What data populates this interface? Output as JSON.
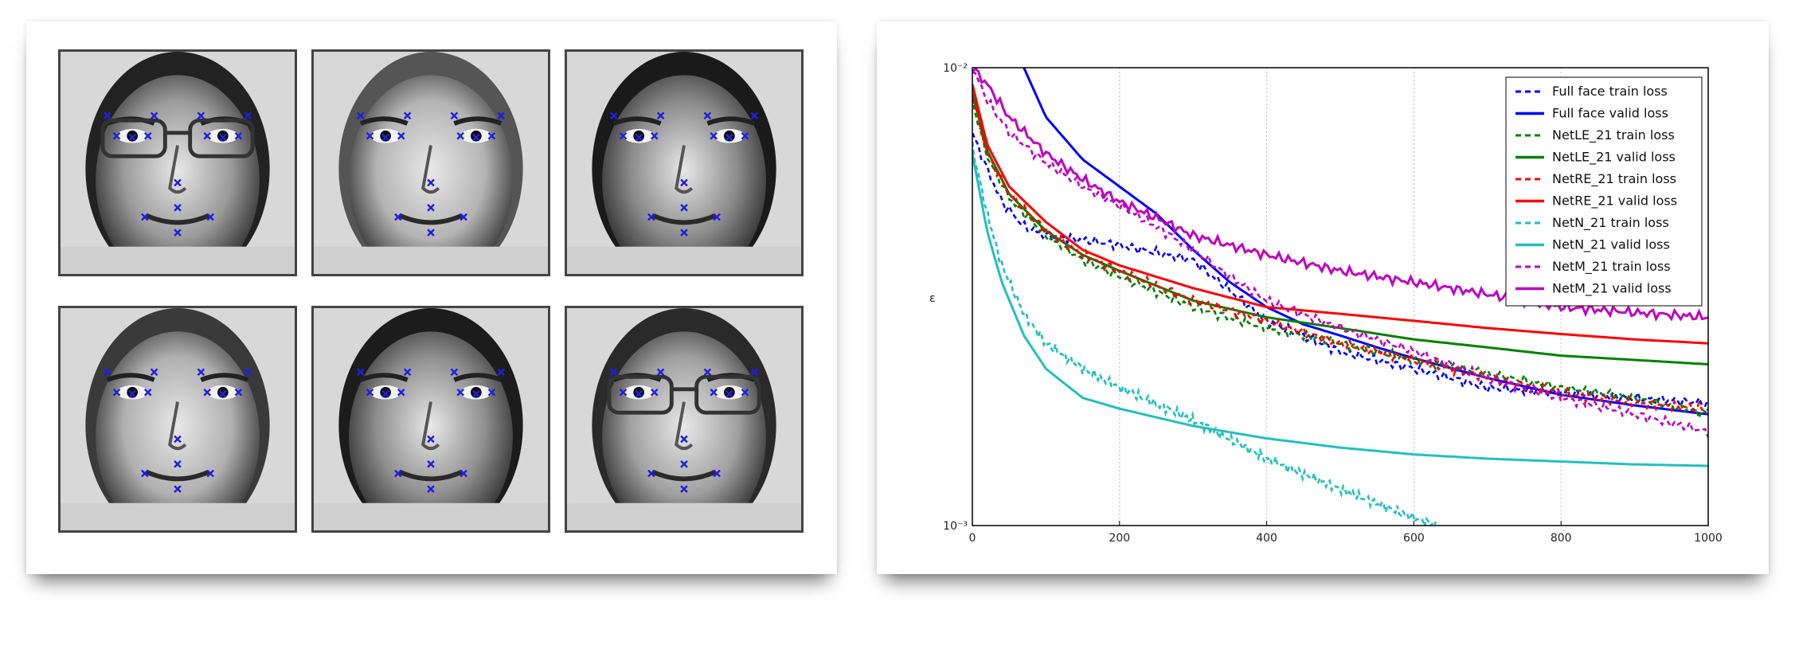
{
  "faces": [
    {
      "row": 0,
      "col": 0,
      "tone": "#9a9a9a",
      "glasses": true,
      "hair": "#222"
    },
    {
      "row": 0,
      "col": 1,
      "tone": "#b4b4b4",
      "glasses": false,
      "hair": "#555"
    },
    {
      "row": 0,
      "col": 2,
      "tone": "#8a8a8a",
      "glasses": false,
      "hair": "#1a1a1a"
    },
    {
      "row": 1,
      "col": 0,
      "tone": "#b0b0b0",
      "glasses": false,
      "hair": "#3a3a3a"
    },
    {
      "row": 1,
      "col": 1,
      "tone": "#8f8f8f",
      "glasses": false,
      "hair": "#1c1c1c"
    },
    {
      "row": 1,
      "col": 2,
      "tone": "#a0a0a0",
      "glasses": true,
      "hair": "#2a2a2a"
    }
  ],
  "marker_color": "#1f1fe0",
  "chart_data": {
    "type": "line",
    "title": "",
    "xlabel": "",
    "ylabel": "ε",
    "xlim": [
      0,
      1000
    ],
    "ylim": [
      0.001,
      0.01
    ],
    "yscale": "log",
    "grid": true,
    "legend_position": "top-right",
    "x_ticks": [
      "0",
      "200",
      "400",
      "600",
      "800",
      "1000"
    ],
    "y_ticks": [
      "10⁻²",
      "10⁻³"
    ],
    "series": [
      {
        "name": "Full face train loss",
        "color": "#0000ff",
        "dash": true,
        "x": [
          0,
          20,
          40,
          70,
          100,
          150,
          200,
          300,
          400,
          500,
          600,
          700,
          800,
          900,
          1000
        ],
        "y": [
          0.0072,
          0.006,
          0.0051,
          0.0045,
          0.0043,
          0.0042,
          0.0041,
          0.0038,
          0.0028,
          0.0024,
          0.0022,
          0.002,
          0.00195,
          0.0019,
          0.00185
        ]
      },
      {
        "name": "Full face valid loss",
        "color": "#0000ff",
        "dash": false,
        "x": [
          70,
          100,
          150,
          200,
          250,
          300,
          350,
          400,
          450,
          500,
          550,
          600,
          700,
          800,
          900,
          1000
        ],
        "y": [
          0.01,
          0.0078,
          0.0063,
          0.0055,
          0.0048,
          0.004,
          0.0034,
          0.003,
          0.00275,
          0.0026,
          0.00245,
          0.00232,
          0.0021,
          0.00193,
          0.00183,
          0.00175
        ]
      },
      {
        "name": "NetLE_21 train loss",
        "color": "#008000",
        "dash": true,
        "x": [
          0,
          20,
          50,
          100,
          150,
          200,
          300,
          400,
          500,
          600,
          700,
          800,
          900,
          1000
        ],
        "y": [
          0.0085,
          0.0064,
          0.0052,
          0.0043,
          0.0038,
          0.0035,
          0.003,
          0.0027,
          0.0025,
          0.0023,
          0.00215,
          0.002,
          0.0019,
          0.00175
        ]
      },
      {
        "name": "NetLE_21 valid loss",
        "color": "#008000",
        "dash": false,
        "x": [
          0,
          20,
          50,
          100,
          150,
          200,
          300,
          400,
          500,
          600,
          700,
          800,
          900,
          1000
        ],
        "y": [
          0.0088,
          0.0066,
          0.0053,
          0.0044,
          0.0039,
          0.0036,
          0.0031,
          0.00285,
          0.0027,
          0.00255,
          0.00245,
          0.00235,
          0.0023,
          0.00225
        ]
      },
      {
        "name": "NetRE_21 train loss",
        "color": "#ff0000",
        "dash": true,
        "x": [
          0,
          20,
          50,
          100,
          150,
          200,
          300,
          400,
          500,
          600,
          700,
          800,
          900,
          1000
        ],
        "y": [
          0.0087,
          0.0065,
          0.0053,
          0.0044,
          0.0039,
          0.0036,
          0.0031,
          0.0028,
          0.0025,
          0.0023,
          0.0021,
          0.00195,
          0.00185,
          0.0018
        ]
      },
      {
        "name": "NetRE_21 valid loss",
        "color": "#ff0000",
        "dash": false,
        "x": [
          0,
          20,
          50,
          100,
          150,
          200,
          300,
          400,
          500,
          600,
          700,
          800,
          900,
          1000
        ],
        "y": [
          0.0092,
          0.0068,
          0.0055,
          0.0046,
          0.004,
          0.0037,
          0.0033,
          0.003,
          0.0029,
          0.0028,
          0.0027,
          0.00262,
          0.00255,
          0.0025
        ]
      },
      {
        "name": "NetN_21 train loss",
        "color": "#22bfbf",
        "dash": true,
        "x": [
          0,
          20,
          40,
          70,
          100,
          150,
          200,
          300,
          400,
          500,
          600,
          630
        ],
        "y": [
          0.0067,
          0.0048,
          0.0037,
          0.0029,
          0.0025,
          0.0022,
          0.002,
          0.0017,
          0.0014,
          0.0012,
          0.00104,
          0.001
        ]
      },
      {
        "name": "NetN_21 valid loss",
        "color": "#22bfbf",
        "dash": false,
        "x": [
          0,
          20,
          40,
          70,
          100,
          150,
          200,
          300,
          400,
          500,
          600,
          700,
          800,
          900,
          1000
        ],
        "y": [
          0.0065,
          0.0044,
          0.0034,
          0.0026,
          0.0022,
          0.0019,
          0.0018,
          0.00165,
          0.00155,
          0.00148,
          0.00143,
          0.0014,
          0.00138,
          0.00136,
          0.00135
        ]
      },
      {
        "name": "NetM_21 train loss",
        "color": "#bf00bf",
        "dash": true,
        "x": [
          0,
          20,
          50,
          100,
          150,
          200,
          250,
          300,
          350,
          400,
          500,
          600,
          700,
          800,
          900,
          1000
        ],
        "y": [
          0.01,
          0.0085,
          0.0072,
          0.0062,
          0.0055,
          0.005,
          0.0045,
          0.004,
          0.0035,
          0.0031,
          0.0027,
          0.0024,
          0.0021,
          0.0019,
          0.00175,
          0.0016
        ]
      },
      {
        "name": "NetM_21 valid loss",
        "color": "#bf00bf",
        "dash": false,
        "x": [
          0,
          20,
          50,
          100,
          150,
          200,
          250,
          300,
          400,
          500,
          600,
          700,
          800,
          900,
          1000
        ],
        "y": [
          0.01,
          0.0092,
          0.0078,
          0.0065,
          0.0057,
          0.0051,
          0.0047,
          0.0043,
          0.0039,
          0.0036,
          0.0034,
          0.0032,
          0.003,
          0.00292,
          0.00285
        ]
      }
    ]
  }
}
